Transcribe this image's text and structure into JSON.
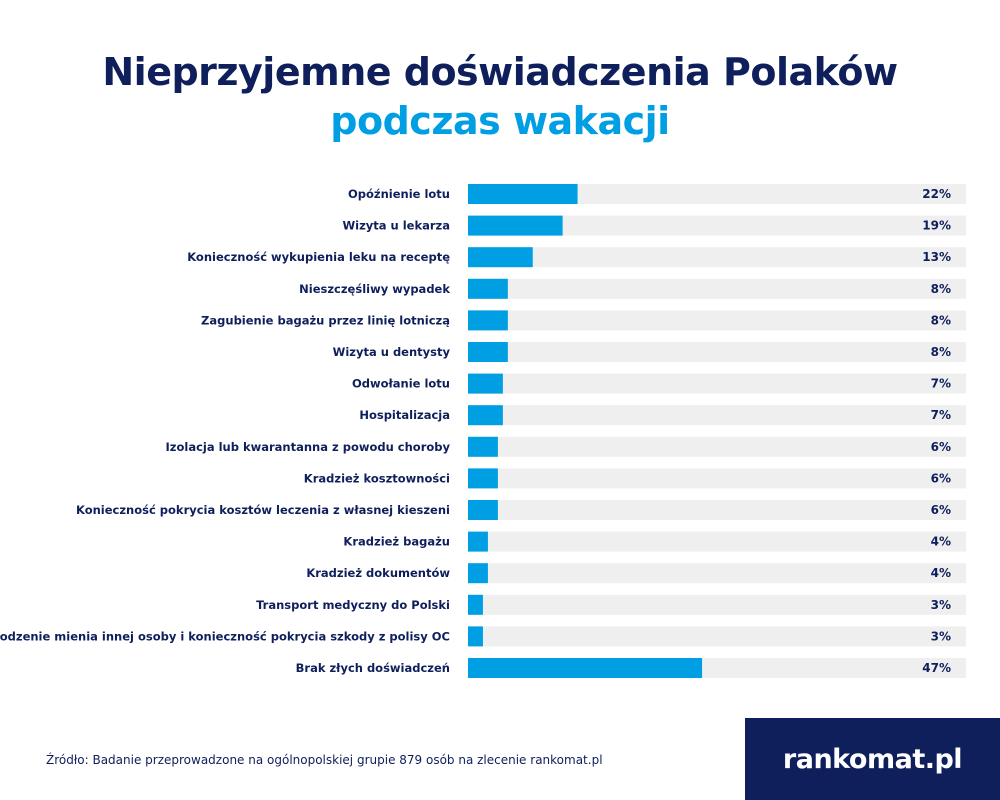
{
  "title": {
    "line1": "Nieprzyjemne doświadczenia Polaków",
    "line2": "podczas wakacji"
  },
  "chart_data": {
    "type": "bar",
    "orientation": "horizontal",
    "categories": [
      "Opóźnienie lotu",
      "Wizyta u lekarza",
      "Konieczność wykupienia leku na receptę",
      "Nieszczęśliwy wypadek",
      "Zagubienie bagażu przez linię lotniczą",
      "Wizyta u dentysty",
      "Odwołanie lotu",
      "Hospitalizacja",
      "Izolacja lub kwarantanna z powodu choroby",
      "Kradzież kosztowności",
      "Konieczność pokrycia kosztów leczenia z własnej kieszeni",
      "Kradzież bagażu",
      "Kradzież dokumentów",
      "Transport medyczny do Polski",
      "Uszkodzenie mienia innej osoby i konieczność pokrycia szkody z polisy OC",
      "Brak złych doświadczeń"
    ],
    "values": [
      22,
      19,
      13,
      8,
      8,
      8,
      7,
      7,
      6,
      6,
      6,
      4,
      4,
      3,
      3,
      47
    ],
    "value_labels": [
      "22%",
      "19%",
      "13%",
      "8%",
      "8%",
      "8%",
      "7%",
      "7%",
      "6%",
      "6%",
      "6%",
      "4%",
      "4%",
      "3%",
      "3%",
      "47%"
    ],
    "xlim": [
      0,
      100
    ],
    "unit": "%"
  },
  "colors": {
    "navy": "#0f1f5c",
    "accent": "#009fe3",
    "track": "#efefef"
  },
  "source_text": "Źródło: Badanie przeprowadzone na ogólnopolskiej grupie 879 osób na zlecenie rankomat.pl",
  "logo": {
    "text": "rankomat.pl",
    "icon": "star-icon"
  }
}
